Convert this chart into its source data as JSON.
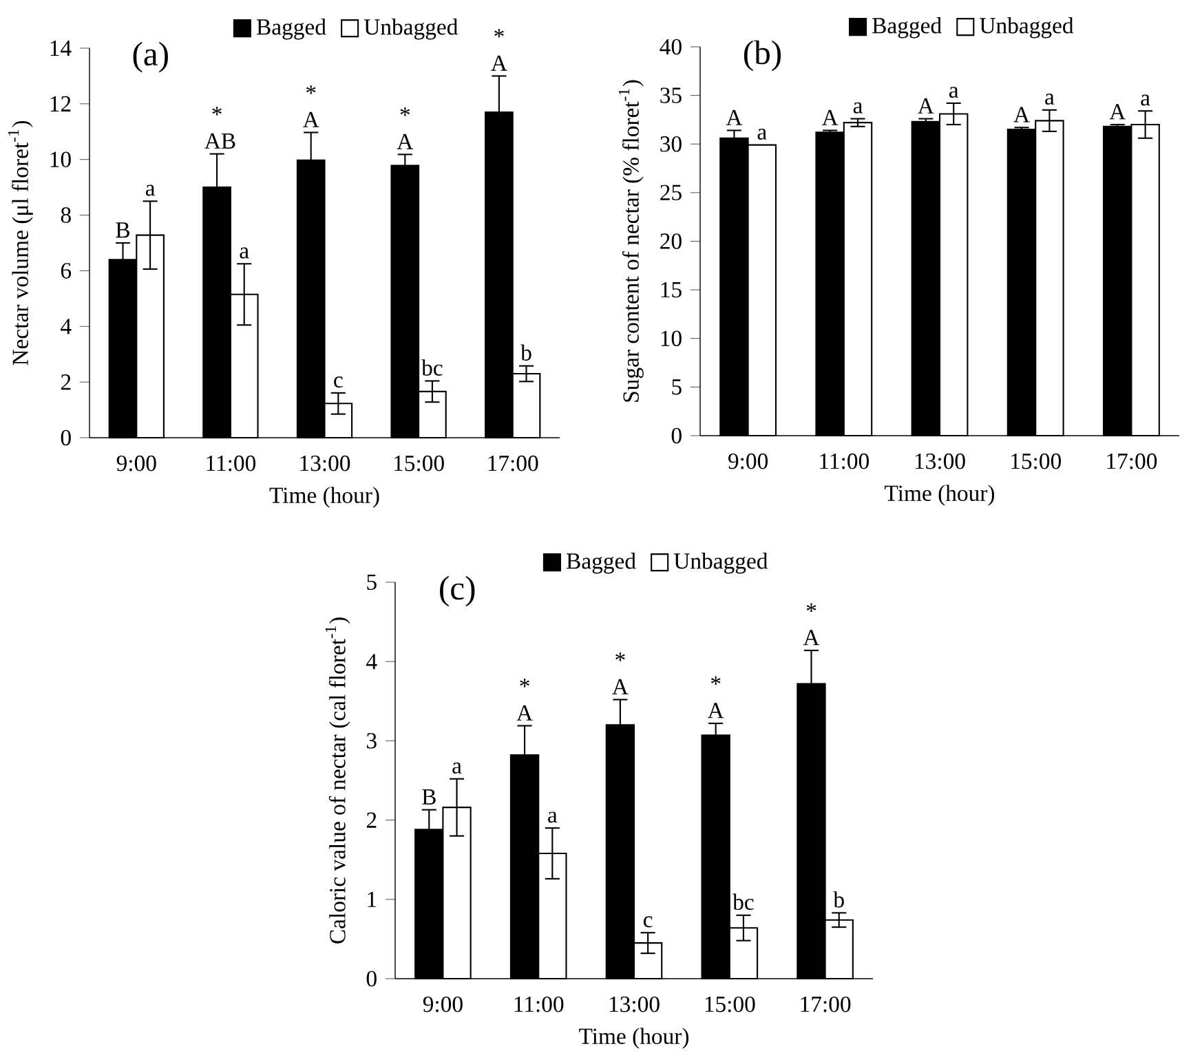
{
  "chart_data": [
    {
      "type": "bar",
      "title": "(a)",
      "xlabel": "Time (hour)",
      "ylabel": "Nectar volume (μl floret$^{-1}$)",
      "categories": [
        "9:00",
        "11:00",
        "13:00",
        "15:00",
        "17:00"
      ],
      "ylim": [
        0,
        14
      ],
      "yticks": [
        0,
        2,
        4,
        6,
        8,
        10,
        12,
        14
      ],
      "legend": "top",
      "series": [
        {
          "name": "Bagged",
          "color": "#000000",
          "values": [
            6.4,
            9.0,
            9.97,
            9.78,
            11.7
          ],
          "errors": [
            0.6,
            1.2,
            1.0,
            0.4,
            1.3
          ],
          "value_labels": [
            "B",
            "* AB",
            "* A",
            "* A",
            "* A"
          ]
        },
        {
          "name": "Unbagged",
          "color": "#ffffff",
          "values": [
            7.28,
            5.15,
            1.23,
            1.66,
            2.3
          ],
          "errors": [
            1.22,
            1.1,
            0.38,
            0.38,
            0.28
          ],
          "value_labels": [
            "a",
            "a",
            "c",
            "bc",
            "b"
          ]
        }
      ]
    },
    {
      "type": "bar",
      "title": "(b)",
      "xlabel": "Time (hour)",
      "ylabel": "Sugar content of nectar  (% floret$^{-1}$)",
      "categories": [
        "9:00",
        "11:00",
        "13:00",
        "15:00",
        "17:00"
      ],
      "ylim": [
        0,
        40
      ],
      "yticks": [
        0,
        5,
        10,
        15,
        20,
        25,
        30,
        35,
        40
      ],
      "legend": "top",
      "series": [
        {
          "name": "Bagged",
          "color": "#000000",
          "values": [
            30.6,
            31.2,
            32.3,
            31.5,
            31.8
          ],
          "errors": [
            0.8,
            0.2,
            0.3,
            0.2,
            0.2
          ],
          "value_labels": [
            "A",
            "A",
            "A",
            "A",
            "A"
          ]
        },
        {
          "name": "Unbagged",
          "color": "#ffffff",
          "values": [
            29.9,
            32.2,
            33.1,
            32.4,
            32.0
          ],
          "errors": [
            null,
            0.4,
            1.1,
            1.1,
            1.4
          ],
          "value_labels": [
            "a",
            "a",
            "a",
            "a",
            "a"
          ]
        }
      ]
    },
    {
      "type": "bar",
      "title": "(c)",
      "xlabel": "Time (hour)",
      "ylabel": "Caloric value of nectar  (cal floret$^{-1}$)",
      "categories": [
        "9:00",
        "11:00",
        "13:00",
        "15:00",
        "17:00"
      ],
      "ylim": [
        0,
        5
      ],
      "yticks": [
        0,
        1,
        2,
        3,
        4,
        5
      ],
      "legend": "top",
      "series": [
        {
          "name": "Bagged",
          "color": "#000000",
          "values": [
            1.88,
            2.82,
            3.2,
            3.07,
            3.72
          ],
          "errors": [
            0.25,
            0.37,
            0.32,
            0.15,
            0.42
          ],
          "value_labels": [
            "B",
            "* A",
            "* A",
            "* A",
            "* A"
          ]
        },
        {
          "name": "Unbagged",
          "color": "#ffffff",
          "values": [
            2.16,
            1.58,
            0.45,
            0.64,
            0.74
          ],
          "errors": [
            0.36,
            0.32,
            0.13,
            0.16,
            0.09
          ],
          "value_labels": [
            "a",
            "a",
            "c",
            "bc",
            "b"
          ]
        }
      ]
    }
  ]
}
